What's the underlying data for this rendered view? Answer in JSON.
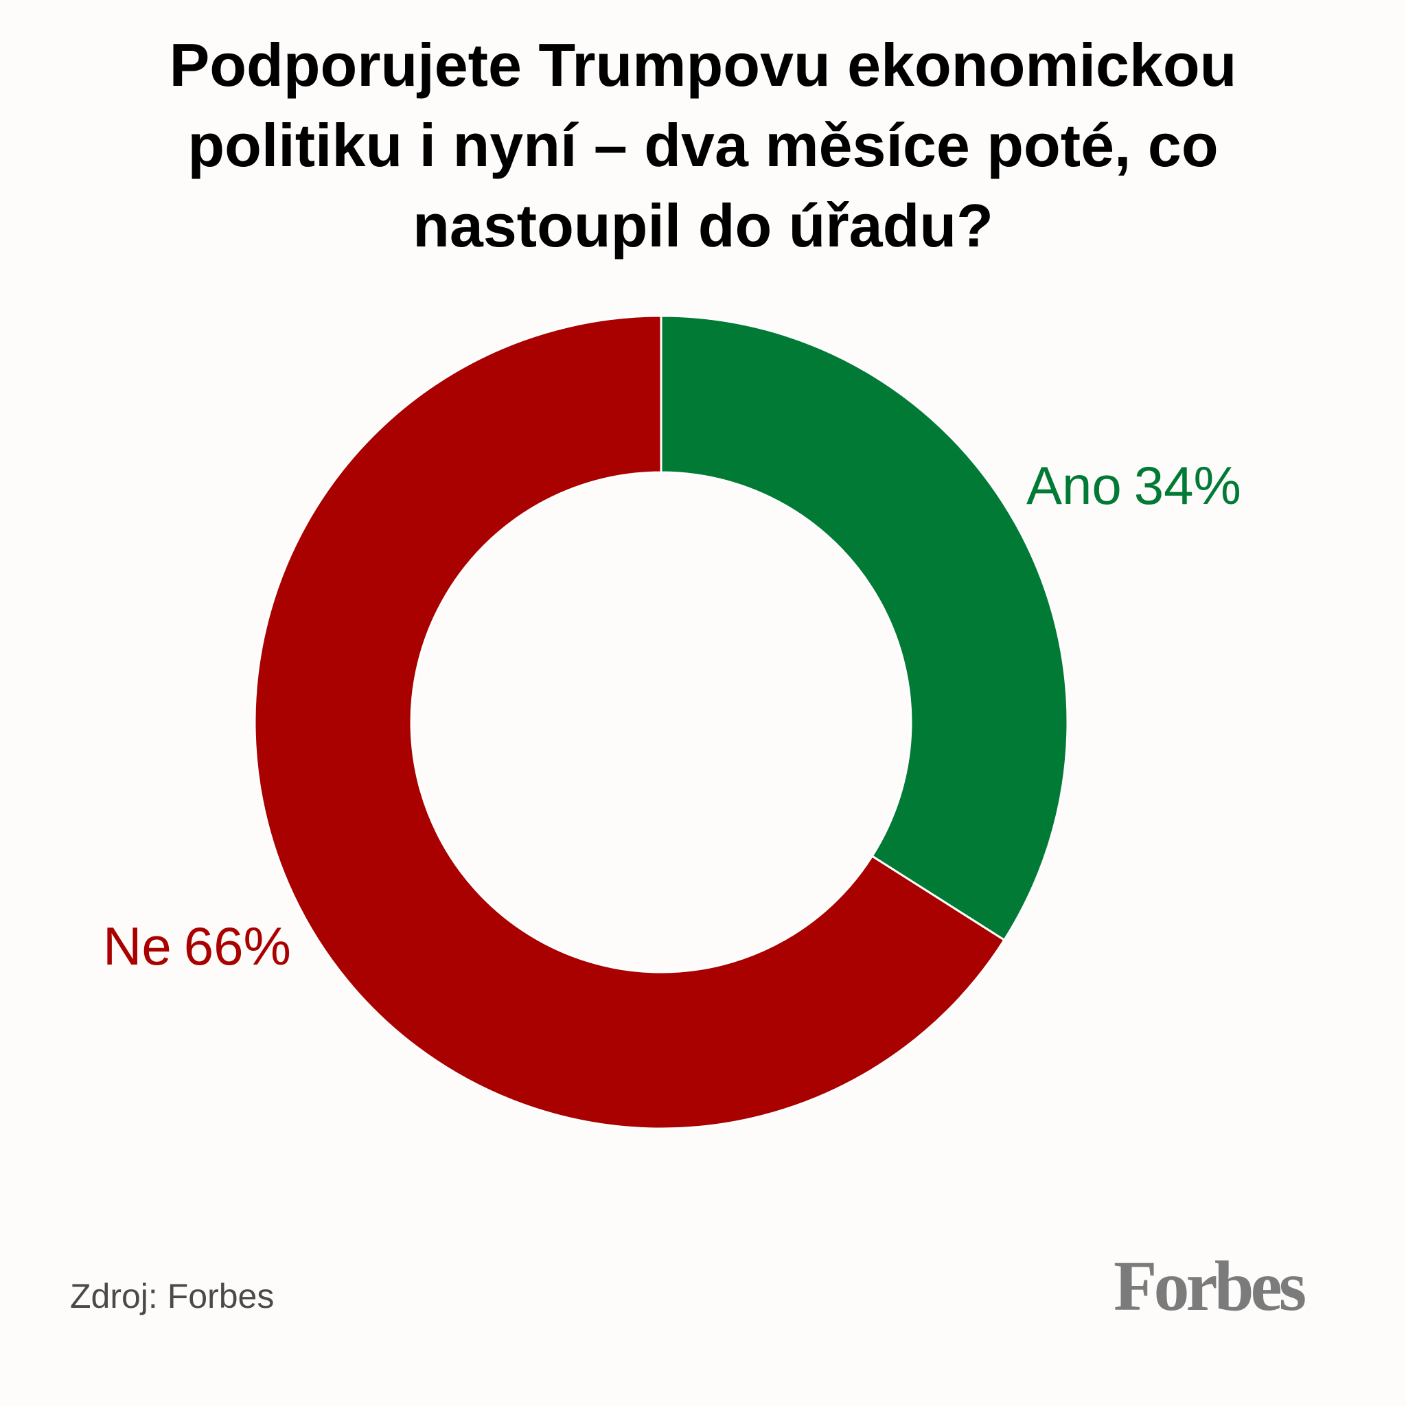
{
  "title_lines": [
    "Podporujete Trumpovu ekonomickou",
    "politiku i nyní – dva měsíce poté, co",
    "nastoupil do úřadu?"
  ],
  "source": "Zdroj: Forbes",
  "logo_text": "Forbes",
  "colors": {
    "ano": "#017a35",
    "ne": "#a90000",
    "logo": "#7b7b7b",
    "background": "#fdfcfb"
  },
  "chart_data": {
    "type": "pie",
    "variant": "donut",
    "title": "Podporujete Trumpovu ekonomickou politiku i nyní – dva měsíce poté, co nastoupil do úřadu?",
    "slices": [
      {
        "name": "Ano",
        "value": 34,
        "value_label": "34%",
        "color": "#017a35"
      },
      {
        "name": "Ne",
        "value": 66,
        "value_label": "66%",
        "color": "#a90000"
      }
    ],
    "unit": "%",
    "start": "top",
    "direction": "clockwise"
  }
}
